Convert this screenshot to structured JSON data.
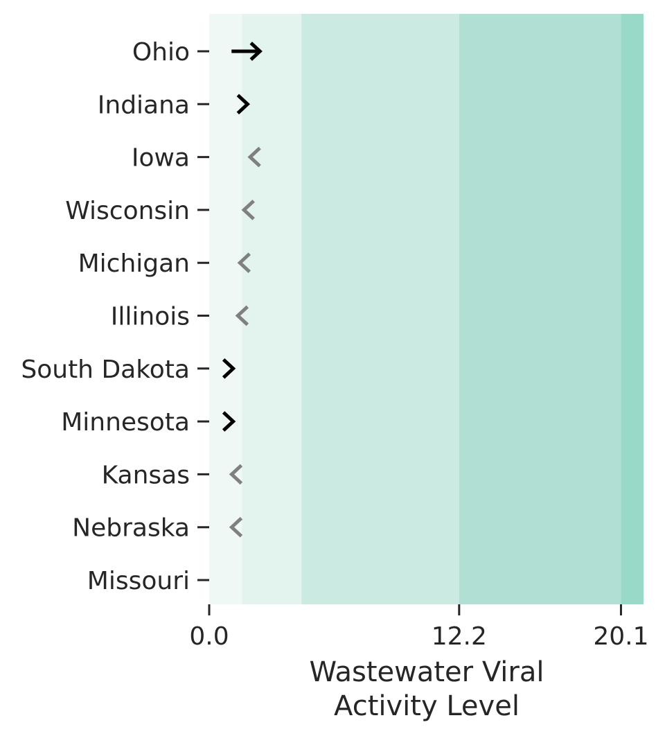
{
  "chart_data": {
    "type": "arrow-strip",
    "xlabel_lines": [
      "Wastewater Viral",
      "Activity Level"
    ],
    "xlim": [
      0,
      21.2
    ],
    "xticks": [
      {
        "value": 0.0,
        "label": "0.0"
      },
      {
        "value": 12.2,
        "label": "12.2"
      },
      {
        "value": 20.1,
        "label": "20.1"
      }
    ],
    "bands": [
      {
        "name": "band-very-low",
        "from": 0.0,
        "to": 1.6,
        "color": "#eff8f5"
      },
      {
        "name": "band-low",
        "from": 1.6,
        "to": 4.5,
        "color": "#e3f4ef"
      },
      {
        "name": "band-moderate",
        "from": 4.5,
        "to": 12.2,
        "color": "#cbeae2"
      },
      {
        "name": "band-high",
        "from": 12.2,
        "to": 20.1,
        "color": "#b0e0d4"
      },
      {
        "name": "band-very-high",
        "from": 20.1,
        "to": 21.2,
        "color": "#98d9c7"
      }
    ],
    "states": [
      {
        "name": "Ohio",
        "value": 1.8,
        "trend": "up",
        "arrow": "long",
        "color": "#000000"
      },
      {
        "name": "Indiana",
        "value": 1.6,
        "trend": "up",
        "arrow": "short",
        "color": "#000000"
      },
      {
        "name": "Iowa",
        "value": 2.2,
        "trend": "down",
        "arrow": "short",
        "color": "#808080"
      },
      {
        "name": "Wisconsin",
        "value": 1.9,
        "trend": "down",
        "arrow": "short",
        "color": "#808080"
      },
      {
        "name": "Michigan",
        "value": 1.7,
        "trend": "down",
        "arrow": "short",
        "color": "#808080"
      },
      {
        "name": "Illinois",
        "value": 1.6,
        "trend": "down",
        "arrow": "short",
        "color": "#808080"
      },
      {
        "name": "South Dakota",
        "value": 0.9,
        "trend": "up",
        "arrow": "short",
        "color": "#000000"
      },
      {
        "name": "Minnesota",
        "value": 0.9,
        "trend": "up",
        "arrow": "short",
        "color": "#000000"
      },
      {
        "name": "Kansas",
        "value": 1.3,
        "trend": "down",
        "arrow": "short",
        "color": "#808080"
      },
      {
        "name": "Nebraska",
        "value": 1.3,
        "trend": "down",
        "arrow": "short",
        "color": "#808080"
      },
      {
        "name": "Missouri",
        "value": null,
        "trend": "none",
        "arrow": "none",
        "color": "#808080"
      }
    ]
  }
}
